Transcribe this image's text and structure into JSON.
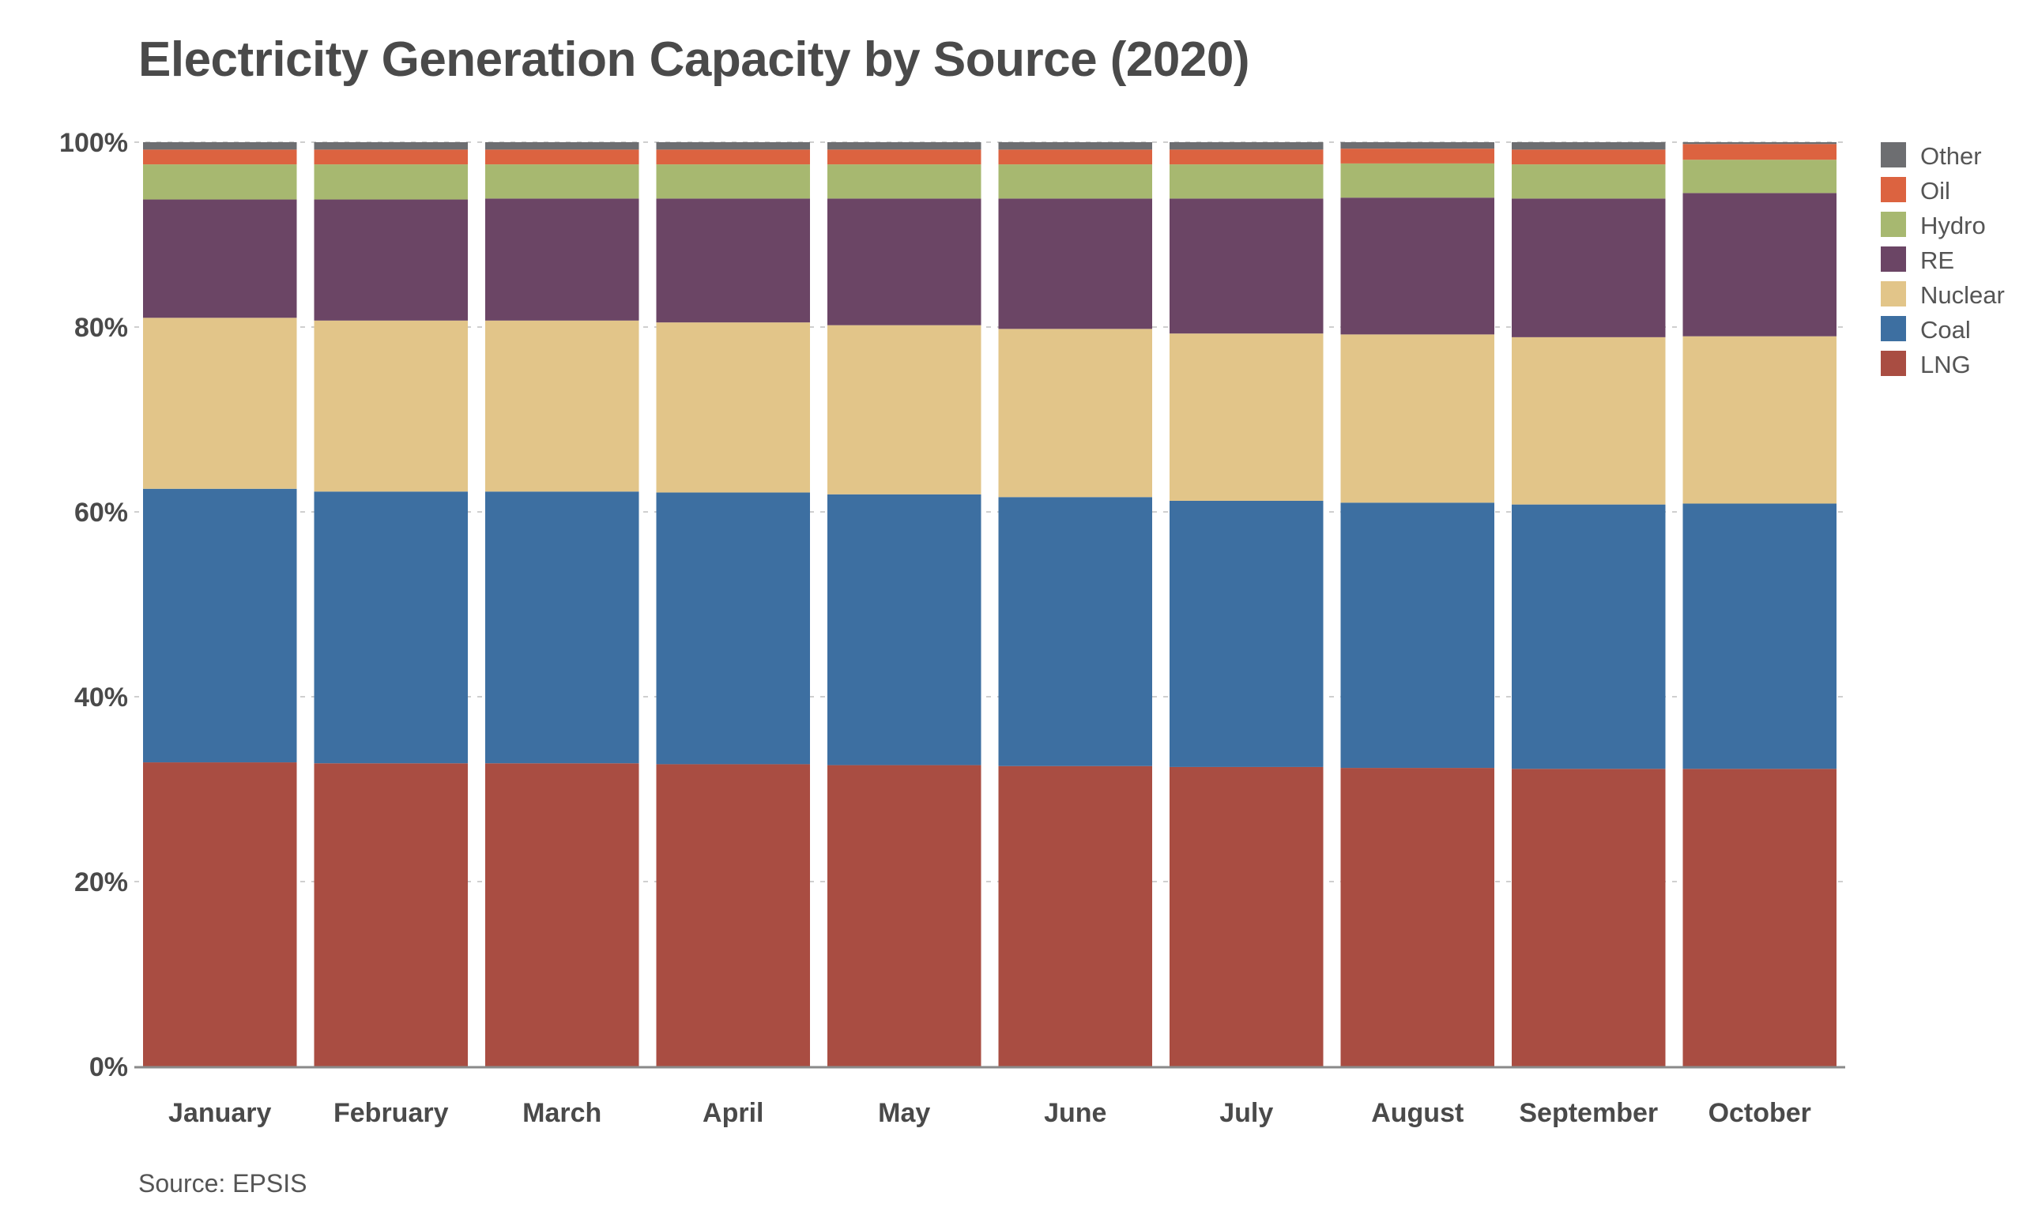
{
  "colors": {
    "Other": "#6d6e71",
    "Oil": "#dc6340",
    "Hydro": "#a7b870",
    "RE": "#6b4565",
    "Nuclear": "#e2c589",
    "Coal": "#3d6fa1",
    "LNG": "#a94d42",
    "grid": "#cfcfcf",
    "axis": "#8a8a8a"
  },
  "chart_data": {
    "type": "bar",
    "stacked": true,
    "title": "Electricity Generation Capacity by Source (2020)",
    "source": "Source: EPSIS",
    "categories": [
      "January",
      "February",
      "March",
      "April",
      "May",
      "June",
      "July",
      "August",
      "September",
      "October"
    ],
    "ylim": [
      0,
      100
    ],
    "yticks": [
      "0%",
      "20%",
      "40%",
      "60%",
      "80%",
      "100%"
    ],
    "grid": true,
    "legend_position": "right",
    "legend": [
      "Other",
      "Oil",
      "Hydro",
      "RE",
      "Nuclear",
      "Coal",
      "LNG"
    ],
    "series": [
      {
        "name": "LNG",
        "values": [
          32.9,
          32.8,
          32.8,
          32.7,
          32.6,
          32.5,
          32.4,
          32.3,
          32.2,
          32.2
        ]
      },
      {
        "name": "Coal",
        "values": [
          29.6,
          29.4,
          29.4,
          29.4,
          29.3,
          29.1,
          28.8,
          28.7,
          28.6,
          28.7
        ]
      },
      {
        "name": "Nuclear",
        "values": [
          18.5,
          18.5,
          18.5,
          18.4,
          18.3,
          18.2,
          18.1,
          18.2,
          18.1,
          18.1
        ]
      },
      {
        "name": "RE",
        "values": [
          12.8,
          13.1,
          13.2,
          13.4,
          13.7,
          14.1,
          14.6,
          14.8,
          15.0,
          15.5
        ]
      },
      {
        "name": "Hydro",
        "values": [
          3.8,
          3.8,
          3.7,
          3.7,
          3.7,
          3.7,
          3.7,
          3.7,
          3.7,
          3.6
        ]
      },
      {
        "name": "Oil",
        "values": [
          1.6,
          1.6,
          1.6,
          1.6,
          1.6,
          1.6,
          1.6,
          1.6,
          1.6,
          1.7
        ]
      },
      {
        "name": "Other",
        "values": [
          0.8,
          0.8,
          0.8,
          0.8,
          0.8,
          0.8,
          0.8,
          0.7,
          0.8,
          0.2
        ]
      }
    ]
  }
}
